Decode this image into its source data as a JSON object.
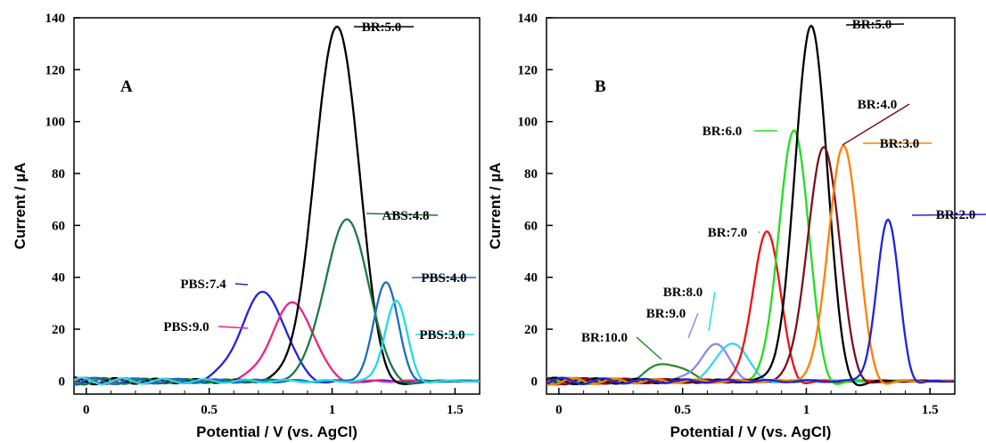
{
  "chart_data": [
    {
      "type": "line",
      "panel_label": "A",
      "xlabel": "Potential / V (vs. AgCl)",
      "ylabel": "Current / µA",
      "xlim": [
        -0.05,
        1.6
      ],
      "ylim": [
        -5,
        140
      ],
      "x_ticks": [
        "0",
        "0.5",
        "1",
        "1.5"
      ],
      "y_ticks": [
        "0",
        "20",
        "40",
        "60",
        "80",
        "100",
        "120",
        "140"
      ],
      "grid": false,
      "legend": "none",
      "series": [
        {
          "name": "PBS:7.4",
          "color": "#2222dd",
          "peak_x": 0.72,
          "peak_y": 34,
          "width": 0.09
        },
        {
          "name": "PBS:9.0",
          "color": "#ee2288",
          "peak_x": 0.84,
          "peak_y": 30,
          "width": 0.085
        },
        {
          "name": "BR:5.0",
          "color": "#000000",
          "peak_x": 1.02,
          "peak_y": 137,
          "width": 0.09
        },
        {
          "name": "ABS:4.8",
          "color": "#1b7a45",
          "peak_x": 1.06,
          "peak_y": 62,
          "width": 0.09
        },
        {
          "name": "PBS:4.0",
          "color": "#1a6ec0",
          "peak_x": 1.22,
          "peak_y": 38,
          "width": 0.05
        },
        {
          "name": "PBS:3.0",
          "color": "#22d8e8",
          "peak_x": 1.26,
          "peak_y": 31,
          "width": 0.045
        }
      ]
    },
    {
      "type": "line",
      "panel_label": "B",
      "xlabel": "Potential / V (vs. AgCl)",
      "ylabel": "Current / µA",
      "xlim": [
        -0.05,
        1.6
      ],
      "ylim": [
        -5,
        140
      ],
      "x_ticks": [
        "0",
        "0.5",
        "1",
        "1.5"
      ],
      "y_ticks": [
        "0",
        "20",
        "40",
        "60",
        "80",
        "100",
        "120",
        "140"
      ],
      "grid": false,
      "legend": "none",
      "series": [
        {
          "name": "BR:10.0",
          "color": "#2e8b2e",
          "peak_x": 0.44,
          "peak_y": 7,
          "width": 0.07
        },
        {
          "name": "BR:9.0",
          "color": "#8a8af0",
          "peak_x": 0.63,
          "peak_y": 14,
          "width": 0.06
        },
        {
          "name": "BR:8.0",
          "color": "#33d6f0",
          "peak_x": 0.7,
          "peak_y": 15,
          "width": 0.06
        },
        {
          "name": "BR:7.0",
          "color": "#ee1111",
          "peak_x": 0.84,
          "peak_y": 58,
          "width": 0.055
        },
        {
          "name": "BR:6.0",
          "color": "#22dd22",
          "peak_x": 0.95,
          "peak_y": 97,
          "width": 0.06
        },
        {
          "name": "BR:5.0",
          "color": "#000000",
          "peak_x": 1.02,
          "peak_y": 137,
          "width": 0.065
        },
        {
          "name": "BR:4.0",
          "color": "#7a1020",
          "peak_x": 1.07,
          "peak_y": 90,
          "width": 0.065
        },
        {
          "name": "BR:3.0",
          "color": "#ff8000",
          "peak_x": 1.15,
          "peak_y": 91,
          "width": 0.06
        },
        {
          "name": "BR:2.0",
          "color": "#2222dd",
          "peak_x": 1.33,
          "peak_y": 62,
          "width": 0.045
        }
      ]
    }
  ]
}
